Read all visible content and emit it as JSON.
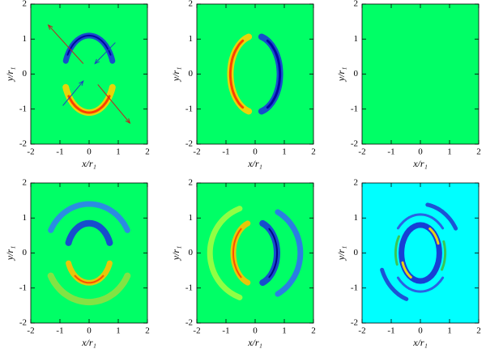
{
  "chart_data": [
    {
      "type": "image",
      "background": "#00ff66",
      "xlabel": "x/r₁",
      "ylabel": "y/r₁",
      "xlim": [
        -2,
        2
      ],
      "ylim": [
        -2,
        2
      ],
      "xticks": [
        -2,
        -1,
        0,
        1,
        2
      ],
      "yticks": [
        -2,
        -1,
        0,
        1,
        2
      ]
    },
    {
      "type": "image",
      "background": "#00ff66",
      "xlabel": "x/r₁",
      "ylabel": "y/r₁",
      "xlim": [
        -2,
        2
      ],
      "ylim": [
        -2,
        2
      ],
      "xticks": [
        -2,
        -1,
        0,
        1,
        2
      ],
      "yticks": [
        -2,
        -1,
        0,
        1,
        2
      ]
    },
    {
      "type": "image",
      "background": "#00ff66",
      "xlabel": "x/r₁",
      "ylabel": "y/r₁",
      "xlim": [
        -2,
        2
      ],
      "ylim": [
        -2,
        2
      ],
      "xticks": [
        -2,
        -1,
        0,
        1,
        2
      ],
      "yticks": [
        -2,
        -1,
        0,
        1,
        2
      ]
    },
    {
      "type": "image",
      "background": "#00ff66",
      "xlabel": "x/r₁",
      "ylabel": "y/r₁",
      "xlim": [
        -2,
        2
      ],
      "ylim": [
        -2,
        2
      ],
      "xticks": [
        -2,
        -1,
        0,
        1,
        2
      ],
      "yticks": [
        -2,
        -1,
        0,
        1,
        2
      ]
    },
    {
      "type": "image",
      "background": "#00ff66",
      "xlabel": "x/r₁",
      "ylabel": "y/r₁",
      "xlim": [
        -2,
        2
      ],
      "ylim": [
        -2,
        2
      ],
      "xticks": [
        -2,
        -1,
        0,
        1,
        2
      ],
      "yticks": [
        -2,
        -1,
        0,
        1,
        2
      ]
    },
    {
      "type": "image",
      "background": "#00ffff",
      "xlabel": "x/r₁",
      "ylabel": "y/r₁",
      "xlim": [
        -2,
        2
      ],
      "ylim": [
        -2,
        2
      ],
      "xticks": [
        -2,
        -1,
        0,
        1,
        2
      ],
      "yticks": [
        -2,
        -1,
        0,
        1,
        2
      ]
    }
  ]
}
